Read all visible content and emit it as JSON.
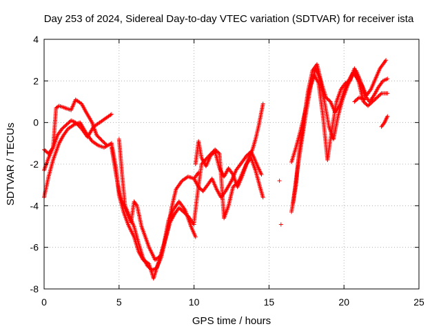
{
  "chart_data": {
    "type": "scatter",
    "title": "Day 253 of 2024, Sidereal Day-to-day VTEC variation (SDTVAR) for receiver ista",
    "xlabel": "GPS time / hours",
    "ylabel": "SDTVAR / TECUs",
    "xlim": [
      0,
      25
    ],
    "ylim": [
      -8,
      4
    ],
    "xticks": [
      0,
      5,
      10,
      15,
      20,
      25
    ],
    "yticks": [
      -8,
      -6,
      -4,
      -2,
      0,
      2,
      4
    ],
    "grid": true,
    "marker": "+",
    "color": "#ff0000",
    "series": [
      {
        "x": [
          0.0,
          0.3,
          0.6,
          1.0,
          1.3,
          1.6,
          2.0,
          2.4,
          2.8,
          3.2,
          3.6,
          4.0,
          4.5
        ],
        "y": [
          -3.6,
          -2.6,
          -1.8,
          -1.0,
          -0.6,
          -0.3,
          -0.1,
          0.0,
          -0.5,
          -0.9,
          -1.1,
          -1.2,
          -1.0
        ]
      },
      {
        "x": [
          0.0,
          0.3,
          0.6,
          0.9,
          1.2,
          1.5,
          1.8,
          2.1,
          2.5,
          2.9,
          3.3,
          3.7,
          4.1,
          4.5
        ],
        "y": [
          -2.3,
          -1.7,
          -1.2,
          -0.6,
          -0.3,
          -0.1,
          0.1,
          0.0,
          -0.3,
          -0.7,
          -0.2,
          0.0,
          0.2,
          0.4
        ]
      },
      {
        "x": [
          0.0,
          0.3,
          0.6,
          0.8,
          1.0,
          1.4,
          1.8,
          2.1,
          2.5,
          2.8,
          3.2,
          3.5,
          3.9,
          4.2
        ],
        "y": [
          -1.3,
          -1.5,
          -1.2,
          0.7,
          0.8,
          0.7,
          0.6,
          1.1,
          0.9,
          0.5,
          0.0,
          -0.6,
          -0.9,
          -1.1
        ]
      },
      {
        "x": [
          4.5,
          4.8,
          5.0,
          5.3,
          5.6,
          6.0,
          6.3,
          6.6,
          7.0,
          7.3,
          7.6,
          8.0,
          8.3,
          8.6,
          9.0,
          9.4,
          9.8,
          10.1
        ],
        "y": [
          -1.0,
          -2.2,
          -3.5,
          -4.3,
          -4.9,
          -5.5,
          -6.2,
          -6.6,
          -6.8,
          -7.5,
          -6.8,
          -5.8,
          -4.7,
          -4.2,
          -3.8,
          -4.2,
          -5.0,
          -5.5
        ]
      },
      {
        "x": [
          4.5,
          4.8,
          5.0,
          5.2,
          5.5,
          5.8,
          6.0,
          6.2,
          6.5,
          7.0,
          7.4,
          7.8,
          8.2,
          8.5,
          8.8,
          9.2,
          9.6,
          10.0,
          10.3
        ],
        "y": [
          -1.2,
          -2.5,
          -3.3,
          -3.8,
          -4.3,
          -4.8,
          -3.8,
          -4.0,
          -5.0,
          -6.0,
          -6.6,
          -6.4,
          -5.3,
          -4.1,
          -3.2,
          -2.8,
          -2.6,
          -2.7,
          -2.4
        ]
      },
      {
        "x": [
          5.0,
          5.2,
          5.4,
          5.7,
          6.0,
          6.3,
          6.6,
          6.9,
          7.2,
          7.5,
          7.8,
          8.1,
          8.4,
          8.7,
          9.0,
          9.3,
          9.6,
          10.0
        ],
        "y": [
          -0.8,
          -2.5,
          -4.0,
          -4.5,
          -5.0,
          -5.8,
          -6.5,
          -6.9,
          -7.1,
          -7.0,
          -6.5,
          -5.6,
          -4.8,
          -4.4,
          -4.1,
          -4.3,
          -4.5,
          -4.9
        ]
      },
      {
        "x": [
          10.0,
          10.3,
          10.6,
          10.9,
          11.2,
          11.5,
          11.8,
          12.1,
          12.5,
          12.8,
          13.2,
          13.5,
          13.8,
          14.0,
          14.3,
          14.5
        ],
        "y": [
          -2.7,
          -3.1,
          -3.3,
          -3.0,
          -2.7,
          -3.2,
          -3.6,
          -3.3,
          -2.8,
          -2.3,
          -1.9,
          -1.6,
          -1.4,
          -1.7,
          -2.2,
          -2.5
        ]
      },
      {
        "x": [
          10.1,
          10.3,
          10.5,
          10.8,
          11.1,
          11.4,
          11.7,
          12.0,
          12.3,
          12.6,
          12.9,
          13.2,
          13.5,
          13.8,
          14.1,
          14.4,
          14.6
        ],
        "y": [
          -2.0,
          -0.9,
          -1.7,
          -2.1,
          -1.6,
          -1.4,
          -2.2,
          -2.6,
          -2.2,
          -2.5,
          -3.1,
          -2.6,
          -2.0,
          -1.7,
          -2.3,
          -3.1,
          -3.6
        ]
      },
      {
        "x": [
          10.0,
          10.2,
          10.5,
          11.0,
          11.4,
          11.7,
          12.0,
          12.3,
          12.6,
          13.0,
          13.3,
          13.6,
          13.9,
          14.1,
          14.3,
          14.6
        ],
        "y": [
          -4.8,
          -3.6,
          -2.0,
          -1.6,
          -1.3,
          -1.5,
          -4.6,
          -4.0,
          -3.1,
          -2.8,
          -2.3,
          -1.8,
          -1.3,
          -0.8,
          -0.2,
          0.9
        ]
      },
      {
        "x": [
          15.7,
          15.8
        ],
        "y": [
          -2.8,
          -4.9
        ]
      },
      {
        "x": [
          16.5,
          16.8,
          17.0,
          17.3,
          17.6,
          17.9,
          18.2,
          18.5,
          18.8,
          19.1,
          19.4,
          19.7,
          20.0,
          20.3,
          20.6,
          20.9,
          21.2,
          21.5,
          21.8,
          22.1,
          22.4,
          22.8
        ],
        "y": [
          -4.3,
          -3.0,
          -1.5,
          0.0,
          1.5,
          2.5,
          2.8,
          1.9,
          1.2,
          1.0,
          0.5,
          0.8,
          1.5,
          2.0,
          2.4,
          2.1,
          1.8,
          1.3,
          1.6,
          2.1,
          2.6,
          3.0
        ]
      },
      {
        "x": [
          16.6,
          16.9,
          17.2,
          17.5,
          17.8,
          18.1,
          18.4,
          18.7,
          19.0,
          19.3,
          19.6,
          19.9,
          20.2,
          20.5,
          20.8,
          21.1,
          21.4,
          21.7,
          22.0,
          22.3,
          22.6,
          22.9
        ],
        "y": [
          -3.9,
          -2.2,
          -0.8,
          0.6,
          1.8,
          2.6,
          2.1,
          1.0,
          -0.2,
          -0.8,
          0.3,
          1.1,
          1.7,
          2.2,
          2.5,
          2.0,
          1.3,
          1.0,
          1.3,
          1.7,
          2.0,
          2.1
        ]
      },
      {
        "x": [
          16.5,
          16.8,
          17.1,
          17.4,
          17.7,
          18.0,
          18.3,
          18.6,
          18.9,
          19.2,
          19.5,
          19.8,
          20.1,
          20.4,
          20.7,
          21.0,
          21.3,
          21.6,
          21.9,
          22.2,
          22.5,
          22.9
        ],
        "y": [
          -1.9,
          -1.2,
          -0.4,
          0.5,
          1.6,
          2.3,
          1.9,
          0.3,
          -1.8,
          -0.3,
          1.0,
          1.6,
          1.9,
          2.0,
          2.6,
          1.9,
          1.0,
          0.8,
          1.0,
          1.2,
          1.4,
          1.4
        ]
      },
      {
        "x": [
          22.5,
          22.7,
          22.9
        ],
        "y": [
          -0.2,
          0.0,
          0.3
        ]
      },
      {
        "x": [
          20.7,
          21.0,
          21.4
        ],
        "y": [
          1.0,
          1.2,
          1.1
        ]
      }
    ]
  }
}
